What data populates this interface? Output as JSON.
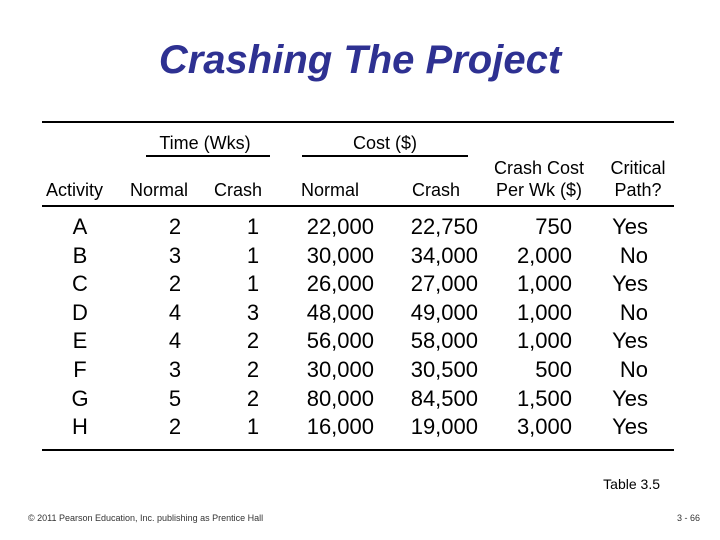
{
  "title": "Crashing The Project",
  "header": {
    "time_group": "Time (Wks)",
    "cost_group": "Cost ($)",
    "activity": "Activity",
    "normal_time": "Normal",
    "crash_time": "Crash",
    "normal_cost": "Normal",
    "crash_cost": "Crash",
    "crash_per_wk_line1": "Crash Cost",
    "crash_per_wk_line2": "Per Wk ($)",
    "critical_line1": "Critical",
    "critical_line2": "Path?"
  },
  "rows": [
    {
      "activity": "A",
      "normal_time": "2",
      "crash_time": "1",
      "normal_cost": "22,000",
      "crash_cost": "22,750",
      "crash_per_wk": "750",
      "critical": "Yes"
    },
    {
      "activity": "B",
      "normal_time": "3",
      "crash_time": "1",
      "normal_cost": "30,000",
      "crash_cost": "34,000",
      "crash_per_wk": "2,000",
      "critical": "No"
    },
    {
      "activity": "C",
      "normal_time": "2",
      "crash_time": "1",
      "normal_cost": "26,000",
      "crash_cost": "27,000",
      "crash_per_wk": "1,000",
      "critical": "Yes"
    },
    {
      "activity": "D",
      "normal_time": "4",
      "crash_time": "3",
      "normal_cost": "48,000",
      "crash_cost": "49,000",
      "crash_per_wk": "1,000",
      "critical": "No"
    },
    {
      "activity": "E",
      "normal_time": "4",
      "crash_time": "2",
      "normal_cost": "56,000",
      "crash_cost": "58,000",
      "crash_per_wk": "1,000",
      "critical": "Yes"
    },
    {
      "activity": "F",
      "normal_time": "3",
      "crash_time": "2",
      "normal_cost": "30,000",
      "crash_cost": "30,500",
      "crash_per_wk": "500",
      "critical": "No"
    },
    {
      "activity": "G",
      "normal_time": "5",
      "crash_time": "2",
      "normal_cost": "80,000",
      "crash_cost": "84,500",
      "crash_per_wk": "1,500",
      "critical": "Yes"
    },
    {
      "activity": "H",
      "normal_time": "2",
      "crash_time": "1",
      "normal_cost": "16,000",
      "crash_cost": "19,000",
      "crash_per_wk": "3,000",
      "critical": "Yes"
    }
  ],
  "caption": "Table 3.5",
  "footer": {
    "copyright": "© 2011 Pearson Education, Inc. publishing as Prentice Hall",
    "page": "3 - 66"
  },
  "colors": {
    "title": "#2E3192"
  }
}
